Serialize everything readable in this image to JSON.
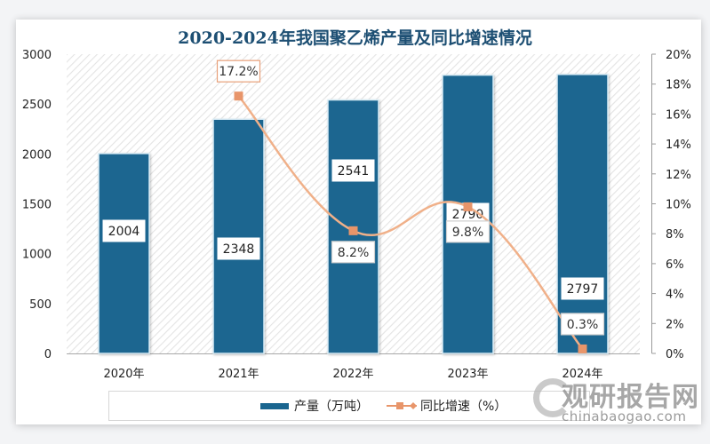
{
  "title": "2020-2024年我国聚乙烯产量及同比增速情况",
  "colors": {
    "bar": "#1a6690",
    "bar_border": "#d9ecf5",
    "line": "#f0b089",
    "marker": "#e8956a",
    "title": "#1d4f73",
    "label_box_border_bar": "#ffffff",
    "label_box_border_line": "#e8a07a"
  },
  "left_axis": {
    "ticks": [
      "0",
      "500",
      "1000",
      "1500",
      "2000",
      "2500",
      "3000"
    ]
  },
  "right_axis": {
    "ticks": [
      "0%",
      "2%",
      "4%",
      "6%",
      "8%",
      "10%",
      "12%",
      "14%",
      "16%",
      "18%",
      "20%"
    ]
  },
  "categories": [
    "2020年",
    "2021年",
    "2022年",
    "2023年",
    "2024年"
  ],
  "bar_labels": [
    "2004",
    "2348",
    "2541",
    "2790",
    "2797"
  ],
  "line_labels": [
    "",
    "17.2%",
    "8.2%",
    "9.8%",
    "0.3%"
  ],
  "legend": {
    "bar_label": "产量（万吨）",
    "line_label": "同比增速（%）"
  },
  "watermark": {
    "cn": "观研报告网",
    "en": "chinabaogao.com"
  },
  "chart_data": {
    "type": "bar",
    "title": "2020-2024年我国聚乙烯产量及同比增速情况",
    "categories": [
      "2020年",
      "2021年",
      "2022年",
      "2023年",
      "2024年"
    ],
    "series": [
      {
        "name": "产量（万吨）",
        "type": "bar",
        "axis": "left",
        "values": [
          2004,
          2348,
          2541,
          2790,
          2797
        ]
      },
      {
        "name": "同比增速（%）",
        "type": "line",
        "axis": "right",
        "values": [
          null,
          17.2,
          8.2,
          9.8,
          0.3
        ]
      }
    ],
    "xlabel": "",
    "ylabel": "",
    "ylim": [
      0,
      3000
    ],
    "y2lim": [
      0,
      20
    ],
    "y_ticks": [
      0,
      500,
      1000,
      1500,
      2000,
      2500,
      3000
    ],
    "y2_ticks": [
      0,
      2,
      4,
      6,
      8,
      10,
      12,
      14,
      16,
      18,
      20
    ],
    "legend_position": "bottom",
    "grid": false,
    "background": "diagonal hatch"
  }
}
